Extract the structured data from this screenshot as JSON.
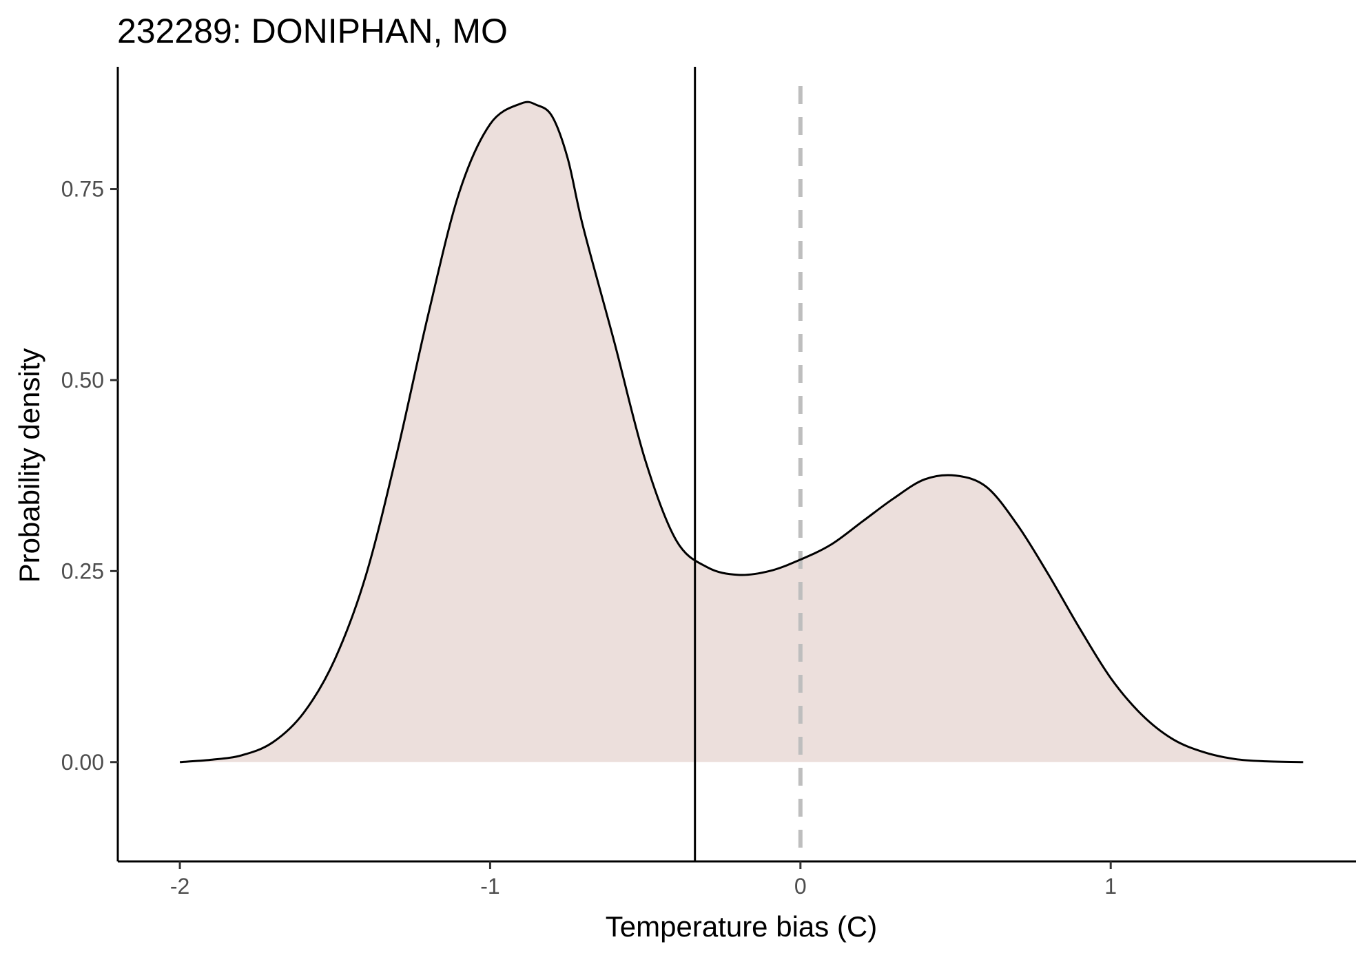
{
  "chart_data": {
    "type": "area",
    "title": "232289: DONIPHAN, MO",
    "xlabel": "Temperature bias (C)",
    "ylabel": "Probability density",
    "xlim": [
      -2.2,
      1.79
    ],
    "ylim": [
      -0.13,
      0.91
    ],
    "x_ticks": [
      -2,
      -1,
      0,
      1
    ],
    "x_tick_labels": [
      "-2",
      "-1",
      "0",
      "1"
    ],
    "y_ticks": [
      0,
      0.25,
      0.5,
      0.75
    ],
    "y_tick_labels": [
      "0.00",
      "0.25",
      "0.50",
      "0.75"
    ],
    "grid": false,
    "legend": "none",
    "fill_color": "#ecdfdc",
    "line_color": "#000000",
    "reference_lines": [
      {
        "x": -0.34,
        "style": "solid",
        "color": "#000000"
      },
      {
        "x": 0,
        "style": "dashed",
        "color": "#bebebe"
      }
    ],
    "series": [
      {
        "x": [
          -2.0,
          -1.9,
          -1.8,
          -1.7,
          -1.6,
          -1.5,
          -1.4,
          -1.3,
          -1.2,
          -1.1,
          -1.0,
          -0.9,
          -0.85,
          -0.8,
          -0.75,
          -0.7,
          -0.6,
          -0.5,
          -0.4,
          -0.3,
          -0.2,
          -0.1,
          0.0,
          0.1,
          0.2,
          0.3,
          0.4,
          0.5,
          0.6,
          0.7,
          0.8,
          0.9,
          1.0,
          1.1,
          1.2,
          1.3,
          1.4,
          1.5,
          1.62
        ],
        "y": [
          0.0,
          0.003,
          0.009,
          0.026,
          0.065,
          0.135,
          0.245,
          0.405,
          0.585,
          0.745,
          0.835,
          0.862,
          0.86,
          0.845,
          0.79,
          0.7,
          0.55,
          0.395,
          0.29,
          0.255,
          0.245,
          0.25,
          0.265,
          0.285,
          0.315,
          0.345,
          0.37,
          0.375,
          0.36,
          0.31,
          0.245,
          0.175,
          0.11,
          0.062,
          0.03,
          0.013,
          0.004,
          0.001,
          0.0
        ]
      }
    ]
  }
}
